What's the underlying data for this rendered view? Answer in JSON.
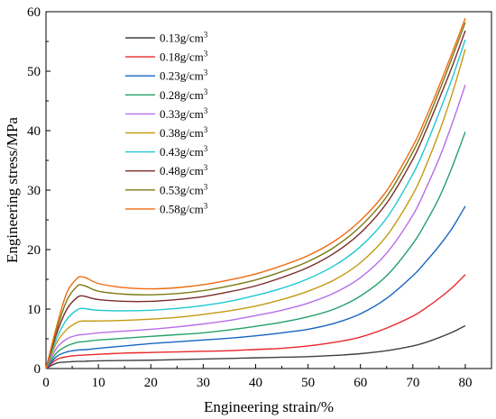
{
  "chart_data": {
    "type": "line",
    "xlabel": "Engineering strain/%",
    "ylabel": "Engineering stress/MPa",
    "xlim": [
      0,
      85
    ],
    "ylim": [
      0,
      60
    ],
    "x_ticks": [
      "0",
      "10",
      "20",
      "30",
      "40",
      "50",
      "60",
      "70",
      "80"
    ],
    "y_ticks": [
      "0",
      "10",
      "20",
      "30",
      "40",
      "50",
      "60"
    ],
    "legend_position": "top-left",
    "grid": false,
    "x": [
      0,
      2,
      4,
      6,
      7,
      8,
      10,
      15,
      20,
      25,
      30,
      35,
      40,
      45,
      50,
      55,
      60,
      65,
      70,
      72.5,
      75,
      77.5,
      80
    ],
    "series": [
      {
        "name": "0.13g/cm",
        "sup": "3",
        "color": "#404040",
        "values": [
          0,
          0.9,
          1.1,
          1.2,
          1.2,
          1.25,
          1.3,
          1.35,
          1.4,
          1.5,
          1.6,
          1.7,
          1.8,
          1.9,
          2.0,
          2.2,
          2.5,
          3.0,
          3.8,
          4.4,
          5.2,
          6.1,
          7.2
        ]
      },
      {
        "name": "0.18g/cm",
        "sup": "3",
        "color": "#e8282b",
        "values": [
          0,
          1.5,
          2.0,
          2.2,
          2.25,
          2.3,
          2.4,
          2.6,
          2.7,
          2.8,
          2.9,
          3.0,
          3.2,
          3.4,
          3.8,
          4.4,
          5.3,
          6.8,
          8.8,
          10.2,
          11.8,
          13.6,
          15.8
        ]
      },
      {
        "name": "0.23g/cm",
        "sup": "3",
        "color": "#1565c0",
        "values": [
          0,
          2.0,
          2.8,
          3.1,
          3.15,
          3.2,
          3.4,
          3.8,
          4.2,
          4.5,
          4.8,
          5.1,
          5.5,
          6.0,
          6.6,
          7.6,
          9.2,
          11.8,
          15.6,
          18.0,
          20.6,
          23.6,
          27.3
        ]
      },
      {
        "name": "0.28g/cm",
        "sup": "3",
        "color": "#26a069",
        "values": [
          0,
          2.6,
          3.8,
          4.4,
          4.5,
          4.6,
          4.8,
          5.1,
          5.4,
          5.7,
          6.0,
          6.5,
          7.1,
          7.8,
          8.7,
          10.0,
          12.2,
          15.6,
          21.0,
          24.6,
          28.7,
          33.9,
          39.8
        ]
      },
      {
        "name": "0.33g/cm",
        "sup": "3",
        "color": "#b76de8",
        "values": [
          0,
          3.4,
          5.0,
          5.6,
          5.7,
          5.8,
          6.0,
          6.3,
          6.6,
          7.0,
          7.5,
          8.1,
          8.9,
          9.8,
          11.0,
          12.7,
          15.3,
          19.4,
          25.8,
          30.3,
          35.3,
          41.2,
          47.7
        ]
      },
      {
        "name": "0.38g/cm",
        "sup": "3",
        "color": "#c49a12",
        "values": [
          0,
          4.3,
          6.6,
          7.8,
          8.0,
          8.0,
          8.0,
          8.1,
          8.3,
          8.6,
          9.1,
          9.7,
          10.5,
          11.6,
          13.0,
          14.9,
          17.8,
          22.3,
          29.3,
          34.1,
          39.7,
          46.2,
          53.7
        ]
      },
      {
        "name": "0.43g/cm",
        "sup": "3",
        "color": "#1ec8d4",
        "values": [
          0,
          5.0,
          8.3,
          9.9,
          10.1,
          10.0,
          9.8,
          9.7,
          9.8,
          10.1,
          10.6,
          11.3,
          12.3,
          13.5,
          15.1,
          17.3,
          20.5,
          25.3,
          32.7,
          37.5,
          43.0,
          48.8,
          55.3
        ]
      },
      {
        "name": "0.48g/cm",
        "sup": "3",
        "color": "#7a2b2b",
        "values": [
          0,
          5.8,
          10.0,
          12.0,
          12.2,
          12.0,
          11.6,
          11.3,
          11.3,
          11.6,
          12.1,
          12.9,
          13.9,
          15.3,
          17.0,
          19.4,
          22.8,
          27.8,
          35.2,
          40.0,
          45.3,
          50.8,
          56.8
        ]
      },
      {
        "name": "0.53g/cm",
        "sup": "3",
        "color": "#7a7a14",
        "values": [
          0,
          6.4,
          11.5,
          13.9,
          14.0,
          13.7,
          13.0,
          12.5,
          12.4,
          12.6,
          13.1,
          13.9,
          14.9,
          16.3,
          18.0,
          20.4,
          23.9,
          28.9,
          36.4,
          41.2,
          46.6,
          52.3,
          58.2
        ]
      },
      {
        "name": "0.58g/cm",
        "sup": "3",
        "color": "#f06a10",
        "values": [
          0,
          7.0,
          12.8,
          15.2,
          15.4,
          15.1,
          14.3,
          13.6,
          13.4,
          13.6,
          14.1,
          14.9,
          15.9,
          17.3,
          19.0,
          21.4,
          24.9,
          29.9,
          37.4,
          42.2,
          47.5,
          53.1,
          58.9
        ]
      }
    ]
  }
}
